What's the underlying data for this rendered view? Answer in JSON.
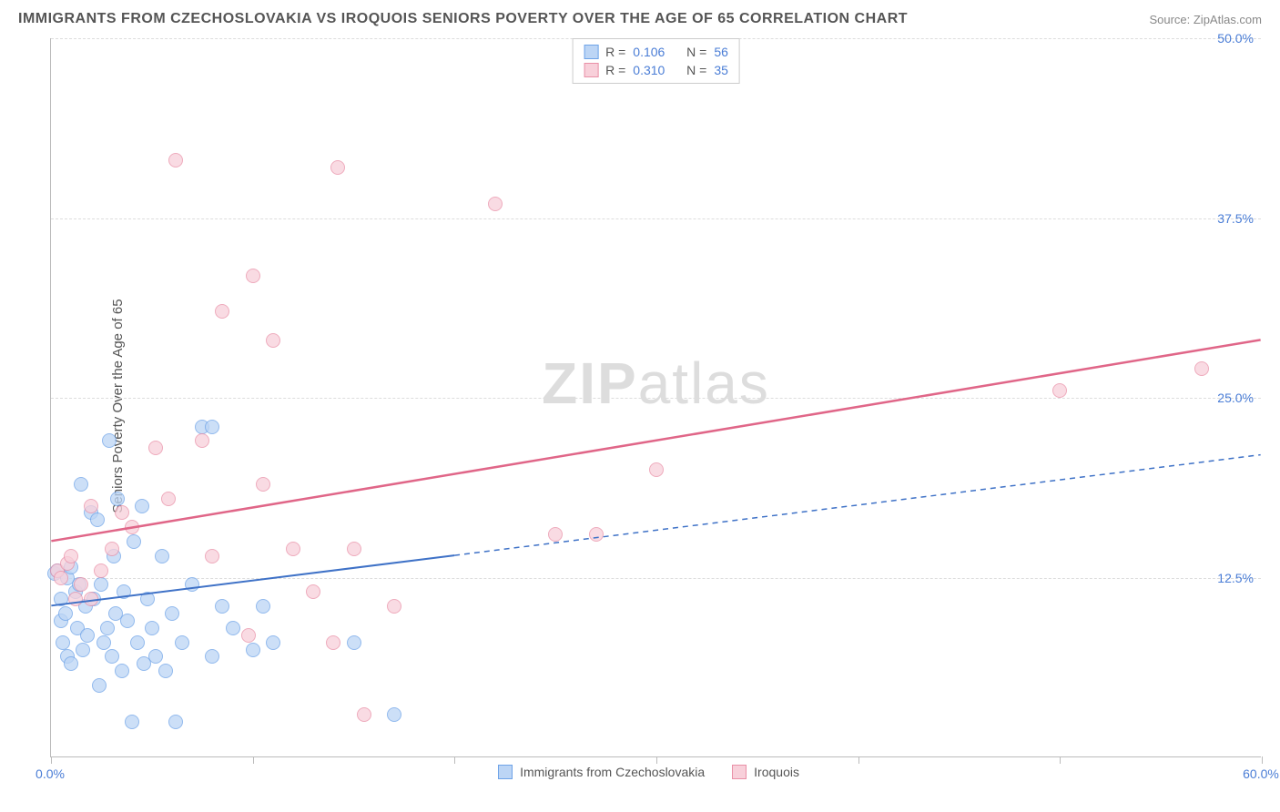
{
  "title": "IMMIGRANTS FROM CZECHOSLOVAKIA VS IROQUOIS SENIORS POVERTY OVER THE AGE OF 65 CORRELATION CHART",
  "source_label": "Source: ",
  "source_name": "ZipAtlas.com",
  "y_axis_label": "Seniors Poverty Over the Age of 65",
  "watermark_a": "ZIP",
  "watermark_b": "atlas",
  "chart": {
    "type": "scatter",
    "background_color": "#ffffff",
    "grid_color": "#dddddd",
    "axis_color": "#bbbbbb",
    "tick_label_color": "#4a7dd6",
    "label_fontsize": 15,
    "title_fontsize": 16,
    "xlim": [
      0,
      60
    ],
    "ylim": [
      0,
      50
    ],
    "x_ticks": [
      0,
      10,
      20,
      30,
      40,
      50,
      60
    ],
    "x_tick_labels": [
      "0.0%",
      "",
      "",
      "",
      "",
      "",
      "60.0%"
    ],
    "y_ticks": [
      12.5,
      25.0,
      37.5,
      50.0
    ],
    "y_tick_labels": [
      "12.5%",
      "25.0%",
      "37.5%",
      "50.0%"
    ],
    "series": [
      {
        "name": "Immigrants from Czechoslovakia",
        "key": "czech",
        "R": "0.106",
        "N": "56",
        "marker_fill": "#bcd5f5",
        "marker_stroke": "#6ea3e8",
        "marker_radius": 8,
        "line_color": "#3f72c7",
        "line_width": 2,
        "line_solid_to_x": 20,
        "trend": {
          "x1": 0,
          "y1": 10.5,
          "x2": 60,
          "y2": 21.0
        },
        "points": [
          [
            0.2,
            12.8
          ],
          [
            0.3,
            13.0
          ],
          [
            0.5,
            11.0
          ],
          [
            0.5,
            9.5
          ],
          [
            0.6,
            8.0
          ],
          [
            0.7,
            10.0
          ],
          [
            0.8,
            12.5
          ],
          [
            0.8,
            7.0
          ],
          [
            1.0,
            13.2
          ],
          [
            1.0,
            6.5
          ],
          [
            1.2,
            11.5
          ],
          [
            1.3,
            9.0
          ],
          [
            1.4,
            12.0
          ],
          [
            1.5,
            19.0
          ],
          [
            1.6,
            7.5
          ],
          [
            1.7,
            10.5
          ],
          [
            1.8,
            8.5
          ],
          [
            2.0,
            17.0
          ],
          [
            2.1,
            11.0
          ],
          [
            2.3,
            16.5
          ],
          [
            2.4,
            5.0
          ],
          [
            2.5,
            12.0
          ],
          [
            2.6,
            8.0
          ],
          [
            2.8,
            9.0
          ],
          [
            2.9,
            22.0
          ],
          [
            3.0,
            7.0
          ],
          [
            3.1,
            14.0
          ],
          [
            3.2,
            10.0
          ],
          [
            3.3,
            18.0
          ],
          [
            3.5,
            6.0
          ],
          [
            3.6,
            11.5
          ],
          [
            3.8,
            9.5
          ],
          [
            4.0,
            2.5
          ],
          [
            4.1,
            15.0
          ],
          [
            4.3,
            8.0
          ],
          [
            4.5,
            17.5
          ],
          [
            4.6,
            6.5
          ],
          [
            4.8,
            11.0
          ],
          [
            5.0,
            9.0
          ],
          [
            5.2,
            7.0
          ],
          [
            5.5,
            14.0
          ],
          [
            5.7,
            6.0
          ],
          [
            6.0,
            10.0
          ],
          [
            6.2,
            2.5
          ],
          [
            6.5,
            8.0
          ],
          [
            7.0,
            12.0
          ],
          [
            7.5,
            23.0
          ],
          [
            8.0,
            23.0
          ],
          [
            8.0,
            7.0
          ],
          [
            8.5,
            10.5
          ],
          [
            9.0,
            9.0
          ],
          [
            10.0,
            7.5
          ],
          [
            10.5,
            10.5
          ],
          [
            11.0,
            8.0
          ],
          [
            15.0,
            8.0
          ],
          [
            17.0,
            3.0
          ]
        ]
      },
      {
        "name": "Iroquois",
        "key": "iroquois",
        "R": "0.310",
        "N": "35",
        "marker_fill": "#f8d0da",
        "marker_stroke": "#e990a7",
        "marker_radius": 8,
        "line_color": "#e06688",
        "line_width": 2.5,
        "line_solid_to_x": 60,
        "trend": {
          "x1": 0,
          "y1": 15.0,
          "x2": 60,
          "y2": 29.0
        },
        "points": [
          [
            0.3,
            13.0
          ],
          [
            0.5,
            12.5
          ],
          [
            0.8,
            13.5
          ],
          [
            1.0,
            14.0
          ],
          [
            1.5,
            12.0
          ],
          [
            2.0,
            17.5
          ],
          [
            2.5,
            13.0
          ],
          [
            3.0,
            14.5
          ],
          [
            3.5,
            17.0
          ],
          [
            4.0,
            16.0
          ],
          [
            5.2,
            21.5
          ],
          [
            5.8,
            18.0
          ],
          [
            6.2,
            41.5
          ],
          [
            7.5,
            22.0
          ],
          [
            8.0,
            14.0
          ],
          [
            8.5,
            31.0
          ],
          [
            9.8,
            8.5
          ],
          [
            10.0,
            33.5
          ],
          [
            10.5,
            19.0
          ],
          [
            11.0,
            29.0
          ],
          [
            12.0,
            14.5
          ],
          [
            13.0,
            11.5
          ],
          [
            14.0,
            8.0
          ],
          [
            14.2,
            41.0
          ],
          [
            15.0,
            14.5
          ],
          [
            15.5,
            3.0
          ],
          [
            17.0,
            10.5
          ],
          [
            22.0,
            38.5
          ],
          [
            25.0,
            15.5
          ],
          [
            27.0,
            15.5
          ],
          [
            30.0,
            20.0
          ],
          [
            50.0,
            25.5
          ],
          [
            57.0,
            27.0
          ],
          [
            2.0,
            11.0
          ],
          [
            1.2,
            11.0
          ]
        ]
      }
    ]
  },
  "legend_r_label": "R =",
  "legend_n_label": "N ="
}
